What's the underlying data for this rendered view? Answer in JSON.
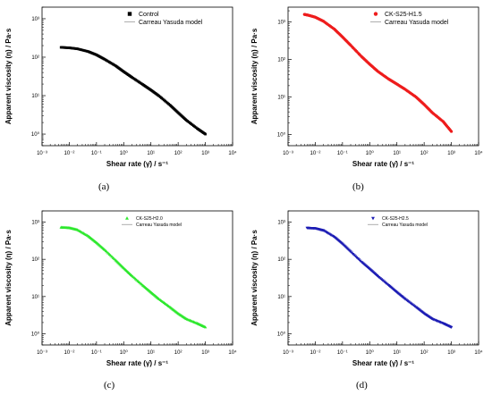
{
  "panels": [
    {
      "tag": "(a)",
      "chart_data": {
        "type": "line",
        "xscale": "log",
        "yscale": "log",
        "xlim": [
          0.001,
          10000
        ],
        "ylim": [
          0.5,
          2000
        ],
        "xticks": [
          0.001,
          0.01,
          0.1,
          1,
          10,
          100,
          1000,
          10000
        ],
        "yticks": [
          1,
          10,
          100,
          1000
        ],
        "xlabel": "Shear rate (γ̇) / s⁻¹",
        "ylabel": "Apparent viscosity (η) / Pa·s",
        "legend": "top-right",
        "legend_size": "normal",
        "series": [
          {
            "name": "Control",
            "role": "data",
            "marker": "square",
            "color": "#000000",
            "x": [
              0.005,
              0.01,
              0.02,
              0.05,
              0.1,
              0.2,
              0.5,
              1,
              2,
              5,
              10,
              20,
              50,
              100,
              200,
              500,
              1000
            ],
            "y": [
              180,
              175,
              165,
              140,
              115,
              88,
              60,
              42,
              30,
              19.5,
              14,
              9.8,
              5.7,
              3.6,
              2.3,
              1.4,
              1.0
            ]
          },
          {
            "name": "Carreau Yasuda model",
            "role": "model",
            "color": "#999999",
            "x": [],
            "y": []
          }
        ]
      }
    },
    {
      "tag": "(b)",
      "chart_data": {
        "type": "line",
        "xscale": "log",
        "yscale": "log",
        "xlim": [
          0.001,
          10000
        ],
        "ylim": [
          0.5,
          2500
        ],
        "xticks": [
          0.001,
          0.01,
          0.1,
          1,
          10,
          100,
          1000,
          10000
        ],
        "yticks": [
          1,
          10,
          100,
          1000
        ],
        "xlabel": "Shear rate (γ̇) / s⁻¹",
        "ylabel": "Apparent viscosity (η) / Pa·s",
        "legend": "top-right",
        "legend_size": "normal",
        "series": [
          {
            "name": "CK-S25-H1.5",
            "role": "data",
            "marker": "circle",
            "color": "#ee1c1c",
            "x": [
              0.004,
              0.006,
              0.01,
              0.02,
              0.05,
              0.1,
              0.2,
              0.5,
              1,
              2,
              5,
              10,
              20,
              50,
              100,
              200,
              500,
              1000
            ],
            "y": [
              1600,
              1500,
              1350,
              1050,
              650,
              400,
              240,
              120,
              75,
              48,
              30,
              22,
              16,
              10,
              6.3,
              3.8,
              2.2,
              1.2
            ]
          },
          {
            "name": "Carreau Yasuda model",
            "role": "model",
            "color": "#999999",
            "x": [],
            "y": []
          }
        ]
      }
    },
    {
      "tag": "(c)",
      "chart_data": {
        "type": "line",
        "xscale": "log",
        "yscale": "log",
        "xlim": [
          0.001,
          10000
        ],
        "ylim": [
          0.5,
          2000
        ],
        "xticks": [
          0.001,
          0.01,
          0.1,
          1,
          10,
          100,
          1000,
          10000
        ],
        "yticks": [
          1,
          10,
          100,
          1000
        ],
        "xlabel": "Shear rate (γ̇) / s⁻¹",
        "ylabel": "Apparent viscosity (η) / Pa·s",
        "legend": "top-right",
        "legend_size": "small",
        "series": [
          {
            "name": "CK-S25-H2.0",
            "role": "data",
            "marker": "triangle-up",
            "color": "#2ee82e",
            "x": [
              0.005,
              0.01,
              0.02,
              0.05,
              0.1,
              0.2,
              0.5,
              1,
              2,
              5,
              10,
              20,
              50,
              100,
              200,
              500,
              1000
            ],
            "y": [
              720,
              700,
              620,
              420,
              280,
              180,
              95,
              58,
              36,
              20,
              13,
              8.5,
              5.2,
              3.5,
              2.5,
              1.9,
              1.5
            ]
          },
          {
            "name": "Carreau Yasuda model",
            "role": "model",
            "color": "#999999",
            "x": [],
            "y": []
          }
        ]
      }
    },
    {
      "tag": "(d)",
      "chart_data": {
        "type": "line",
        "xscale": "log",
        "yscale": "log",
        "xlim": [
          0.001,
          10000
        ],
        "ylim": [
          0.5,
          2000
        ],
        "xticks": [
          0.001,
          0.01,
          0.1,
          1,
          10,
          100,
          1000,
          10000
        ],
        "yticks": [
          1,
          10,
          100,
          1000
        ],
        "xlabel": "Shear rate (γ̇) / s⁻¹",
        "ylabel": "Apparent viscosity (η) / Pa·s",
        "legend": "top-right",
        "legend_size": "small",
        "series": [
          {
            "name": "CK-S25-H2.5",
            "role": "data",
            "marker": "triangle-down",
            "color": "#1c1cb4",
            "x": [
              0.005,
              0.01,
              0.02,
              0.05,
              0.1,
              0.2,
              0.5,
              1,
              2,
              5,
              10,
              20,
              50,
              100,
              200,
              500,
              1000
            ],
            "y": [
              700,
              680,
              600,
              400,
              260,
              160,
              85,
              55,
              35,
              20,
              13,
              8.6,
              5.2,
              3.5,
              2.5,
              1.9,
              1.5
            ]
          },
          {
            "name": "Carreau Yasuda model",
            "role": "model",
            "color": "#999999",
            "x": [],
            "y": []
          }
        ]
      }
    }
  ]
}
